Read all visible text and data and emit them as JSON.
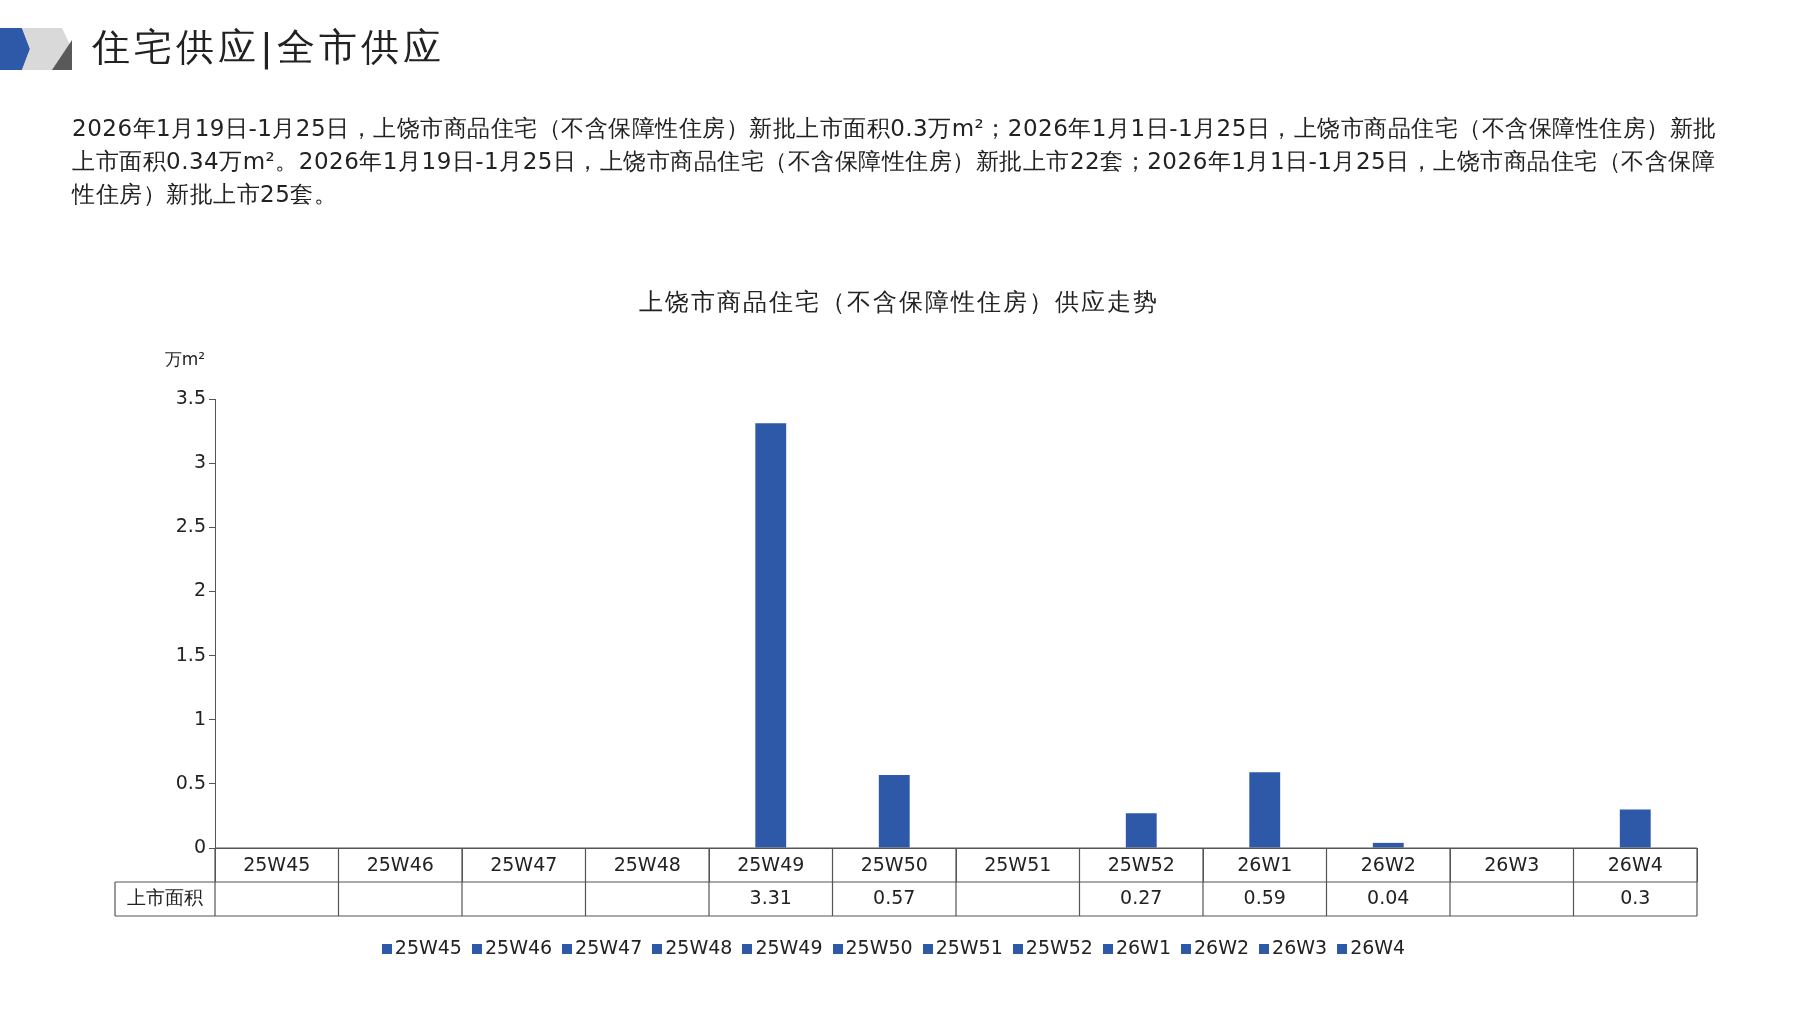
{
  "chart_data": {
    "type": "bar",
    "annotations": [
      "住宅供应|全市供应"
    ],
    "subtitle": "2026年1月19日-1月25日，上饶市商品住宅（不含保障性住房）新批上市面积0.3万m²；2026年1月1日-1月25日，上饶市商品住宅（不含保障性住房）新批上市面积0.34万m²。2026年1月19日-1月25日，上饶市商品住宅（不含保障性住房）新批上市22套；2026年1月1日-1月25日，上饶市商品住宅（不含保障性住房）新批上市25套。",
    "title": "上饶市商品住宅（不含保障性住房）供应走势",
    "ylabel": "万m²",
    "categories": [
      "25W45",
      "25W46",
      "25W47",
      "25W48",
      "25W49",
      "25W50",
      "25W51",
      "25W52",
      "26W1",
      "26W2",
      "26W3",
      "26W4"
    ],
    "series": [
      {
        "name": "上市面积",
        "color": "#2e59a8",
        "values": [
          null,
          null,
          null,
          null,
          3.31,
          0.57,
          null,
          0.27,
          0.59,
          0.04,
          null,
          0.3
        ]
      }
    ],
    "ylim": [
      0,
      3.5
    ],
    "yticks": [
      0,
      0.5,
      1,
      1.5,
      2,
      2.5,
      3,
      3.5
    ],
    "grid": false,
    "legend": "bottom",
    "data_labels": true
  }
}
